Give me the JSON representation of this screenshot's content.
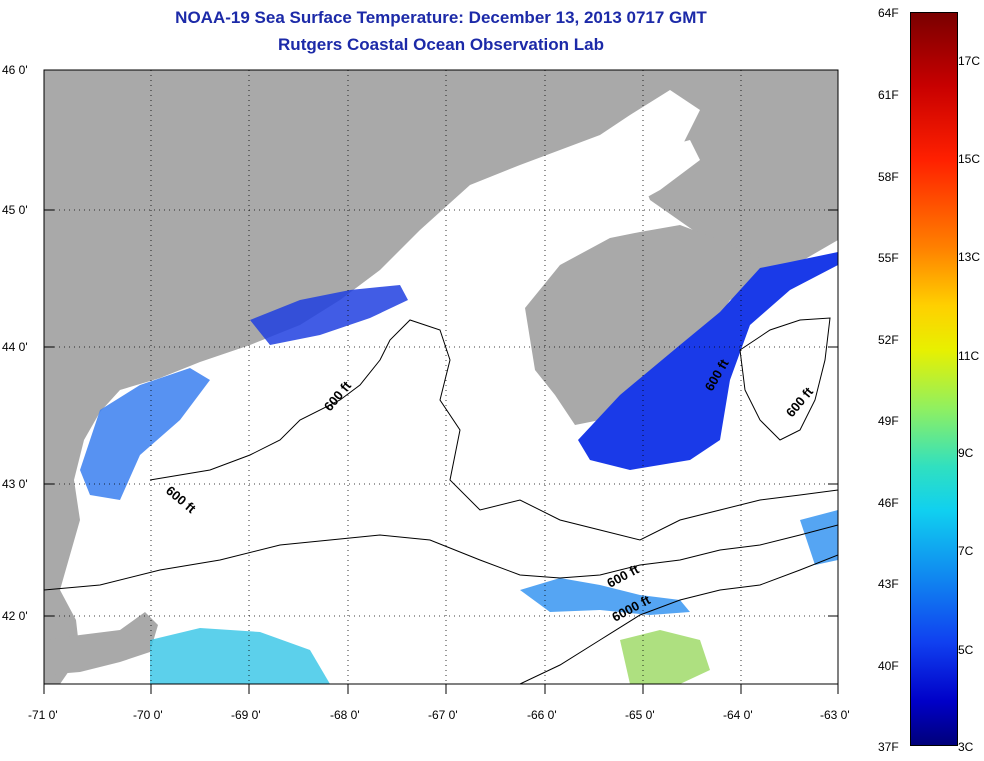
{
  "title": "NOAA-19 Sea Surface Temperature:  December 13, 2013 0717 GMT",
  "subtitle": "Rutgers Coastal Ocean Observation Lab",
  "map": {
    "lat_labels": [
      "46 0'",
      "45 0'",
      "44 0'",
      "43 0'",
      "42 0'"
    ],
    "lon_labels": [
      "-71 0'",
      "-70 0'",
      "-69 0'",
      "-68 0'",
      "-67 0'",
      "-66 0'",
      "-65 0'",
      "-64 0'",
      "-63 0'"
    ],
    "contour_labels": [
      "600 ft",
      "600 ft",
      "600 ft",
      "600 ft",
      "600 ft",
      "6000 ft"
    ],
    "colors": {
      "land": "#a9a9a9",
      "ocean_no_data": "#ffffff",
      "cold_water": "#1a3fe0",
      "cool_water": "#2a8ff0",
      "mild_water": "#4ee0d0"
    }
  },
  "colorbar": {
    "fahrenheit": [
      "64F",
      "61F",
      "58F",
      "55F",
      "52F",
      "49F",
      "46F",
      "43F",
      "40F",
      "37F"
    ],
    "celsius": [
      "17C",
      "15C",
      "13C",
      "11C",
      "9C",
      "7C",
      "5C",
      "3C"
    ]
  }
}
